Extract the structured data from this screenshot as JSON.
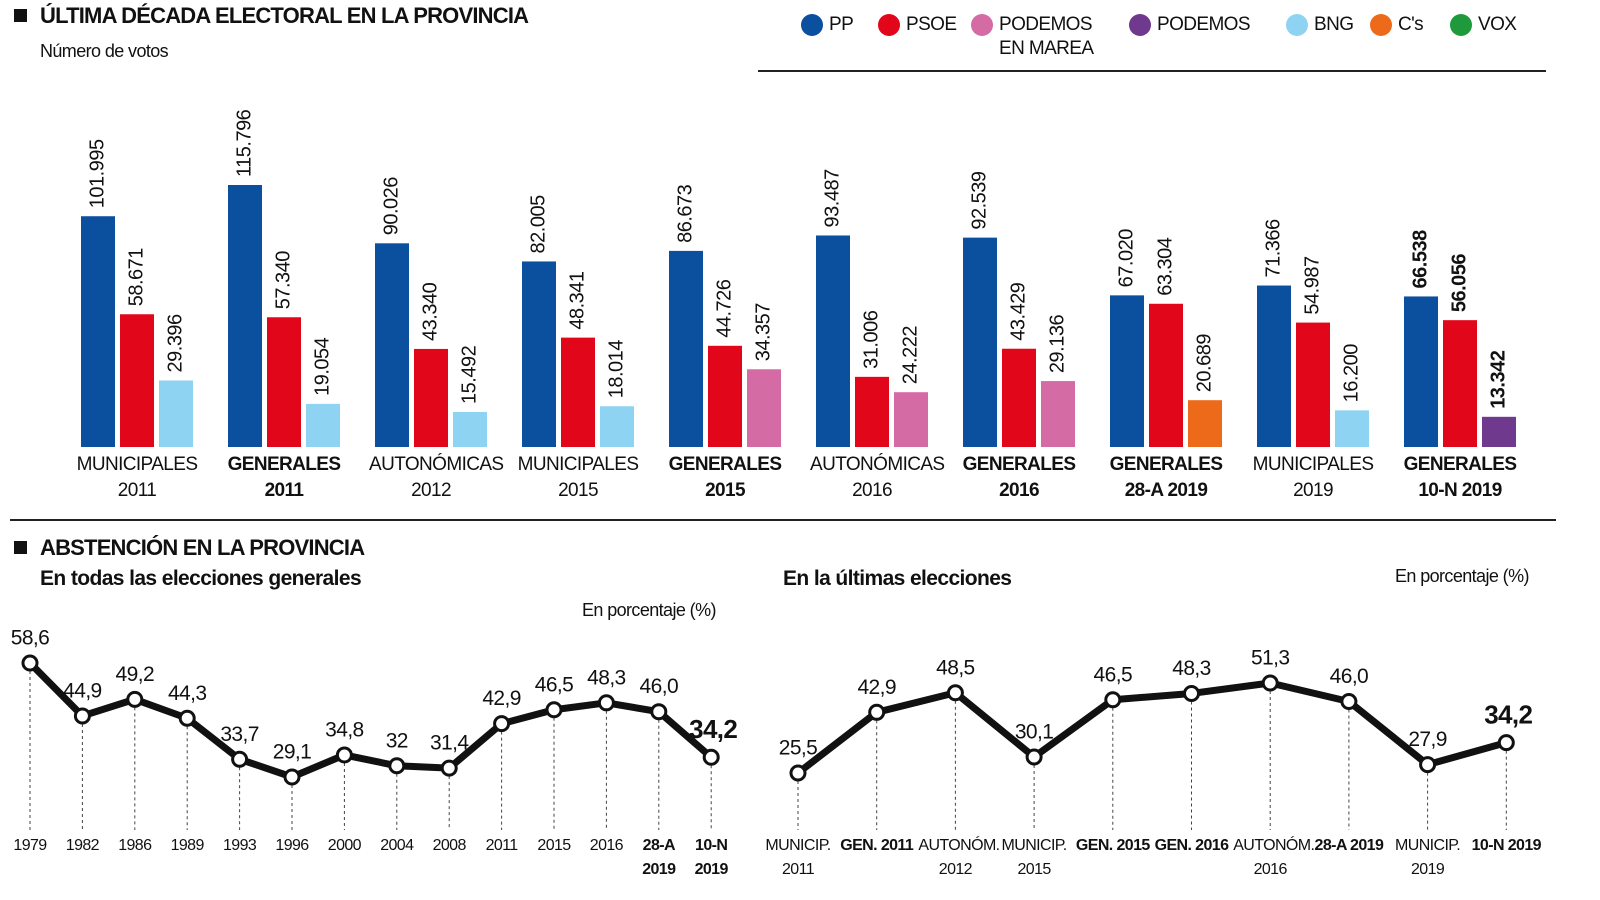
{
  "title": "ÚLTIMA DÉCADA ELECTORAL EN LA PROVINCIA",
  "subtitle": "Número de votos",
  "abstention_title": "ABSTENCIÓN EN LA PROVINCIA",
  "chart_data": [
    {
      "type": "bar",
      "categories": [
        "MUNICIPALES 2011",
        "GENERALES 2011",
        "AUTONÓMICAS 2012",
        "MUNICIPALES 2015",
        "GENERALES 2015",
        "AUTONÓMICAS 2016",
        "GENERALES 2016",
        "GENERALES 28-A 2019",
        "MUNICIPALES 2019",
        "GENERALES 10-N 2019"
      ],
      "bold": [
        false,
        true,
        false,
        false,
        true,
        false,
        true,
        true,
        false,
        true
      ],
      "series": [
        {
          "name": "PP",
          "color": "#0b4f9f",
          "values": [
            101995,
            115796,
            90026,
            82005,
            86673,
            93487,
            92539,
            67020,
            71366,
            66538
          ],
          "value_labels": [
            "101.995",
            "115.796",
            "90.026",
            "82.005",
            "86.673",
            "93.487",
            "92.539",
            "67.020",
            "71.366",
            "66.538"
          ]
        },
        {
          "name": "PSOE",
          "color": "#e1061a",
          "values": [
            58671,
            57340,
            43340,
            48341,
            44726,
            31006,
            43429,
            63304,
            54987,
            56056
          ],
          "value_labels": [
            "58.671",
            "57.340",
            "43.340",
            "48.341",
            "44.726",
            "31.006",
            "43.429",
            "63.304",
            "54.987",
            "56.056"
          ]
        },
        {
          "name": "PODEMOS EN MAREA",
          "color": "#d56ba5",
          "values": [
            null,
            null,
            null,
            null,
            34357,
            24222,
            29136,
            null,
            null,
            null
          ],
          "value_labels": [
            null,
            null,
            null,
            null,
            "34.357",
            "24.222",
            "29.136",
            null,
            null,
            null
          ]
        },
        {
          "name": "PODEMOS",
          "color": "#6f3a8e",
          "values": [
            null,
            null,
            null,
            null,
            null,
            null,
            null,
            null,
            null,
            13342
          ],
          "value_labels": [
            null,
            null,
            null,
            null,
            null,
            null,
            null,
            null,
            null,
            "13.342"
          ]
        },
        {
          "name": "BNG",
          "color": "#8ed4f2",
          "values": [
            29396,
            19054,
            15492,
            18014,
            null,
            null,
            null,
            null,
            16200,
            null
          ],
          "value_labels": [
            "29.396",
            "19.054",
            "15.492",
            "18.014",
            null,
            null,
            null,
            null,
            "16.200",
            null
          ]
        },
        {
          "name": "C's",
          "color": "#ee6a1b",
          "values": [
            null,
            null,
            null,
            null,
            null,
            null,
            null,
            20689,
            null,
            null
          ],
          "value_labels": [
            null,
            null,
            null,
            null,
            null,
            null,
            null,
            "20.689",
            null,
            null
          ]
        },
        {
          "name": "VOX",
          "color": "#1e9a3c",
          "values": [
            null,
            null,
            null,
            null,
            null,
            null,
            null,
            null,
            null,
            null
          ]
        }
      ]
    },
    {
      "type": "line",
      "title": "En todas las elecciones generales",
      "unit": "En porcentaje (%)",
      "categories": [
        "1979",
        "1982",
        "1986",
        "1989",
        "1993",
        "1996",
        "2000",
        "2004",
        "2008",
        "2011",
        "2015",
        "2016",
        "28-A 2019",
        "10-N 2019"
      ],
      "bold": [
        false,
        false,
        false,
        false,
        false,
        false,
        false,
        false,
        false,
        false,
        false,
        false,
        true,
        true
      ],
      "values": [
        58.6,
        44.9,
        49.2,
        44.3,
        33.7,
        29.1,
        34.8,
        32,
        31.4,
        42.9,
        46.5,
        48.3,
        46.0,
        34.2
      ],
      "value_labels": [
        "58,6",
        "44,9",
        "49,2",
        "44,3",
        "33,7",
        "29,1",
        "34,8",
        "32",
        "31,4",
        "42,9",
        "46,5",
        "48,3",
        "46,0",
        "34,2"
      ],
      "color": "#111111"
    },
    {
      "type": "line",
      "title": "En la últimas elecciones",
      "unit": "En porcentaje (%)",
      "categories": [
        "MUNICIP. 2011",
        "GEN. 2011",
        "AUTONÓM. 2012",
        "MUNICIP. 2015",
        "GEN. 2015",
        "GEN. 2016",
        "AUTONÓM. 2016",
        "28-A 2019",
        "MUNICIP. 2019",
        "10-N 2019"
      ],
      "bold": [
        false,
        true,
        false,
        false,
        true,
        true,
        false,
        true,
        false,
        true
      ],
      "values": [
        25.5,
        42.9,
        48.5,
        30.1,
        46.5,
        48.3,
        51.3,
        46.0,
        27.9,
        34.2
      ],
      "value_labels": [
        "25,5",
        "42,9",
        "48,5",
        "30,1",
        "46,5",
        "48,3",
        "51,3",
        "46,0",
        "27,9",
        "34,2"
      ],
      "color": "#111111"
    }
  ]
}
